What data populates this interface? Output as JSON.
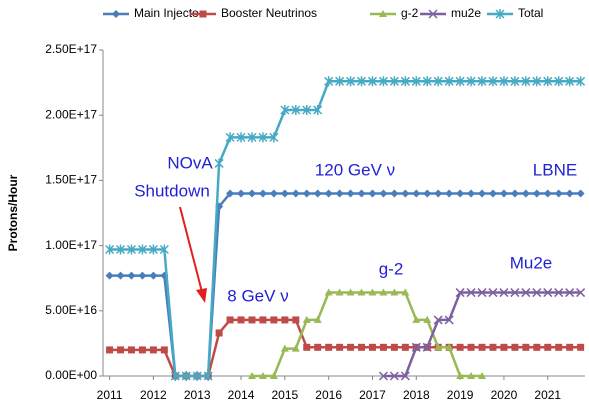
{
  "chart_data": {
    "type": "line",
    "ylabel": "Protons/Hour",
    "x": [
      2011,
      2011.25,
      2011.5,
      2011.75,
      2012,
      2012.25,
      2012.5,
      2012.75,
      2013,
      2013.25,
      2013.5,
      2013.75,
      2014,
      2014.25,
      2014.5,
      2014.75,
      2015,
      2015.25,
      2015.5,
      2015.75,
      2016,
      2016.25,
      2016.5,
      2016.75,
      2017,
      2017.25,
      2017.5,
      2017.75,
      2018,
      2018.25,
      2018.5,
      2018.75,
      2019,
      2019.25,
      2019.5,
      2019.75,
      2020,
      2020.25,
      2020.5,
      2020.75,
      2021,
      2021.25,
      2021.5,
      2021.75
    ],
    "series": [
      {
        "name": "Main Injector",
        "color": "#4a7ebb",
        "marker": "diamond",
        "values": [
          7.7e+16,
          7.7e+16,
          7.7e+16,
          7.7e+16,
          7.7e+16,
          7.7e+16,
          0,
          0,
          0,
          0,
          1.3e+17,
          1.4e+17,
          1.4e+17,
          1.4e+17,
          1.4e+17,
          1.4e+17,
          1.4e+17,
          1.4e+17,
          1.4e+17,
          1.4e+17,
          1.4e+17,
          1.4e+17,
          1.4e+17,
          1.4e+17,
          1.4e+17,
          1.4e+17,
          1.4e+17,
          1.4e+17,
          1.4e+17,
          1.4e+17,
          1.4e+17,
          1.4e+17,
          1.4e+17,
          1.4e+17,
          1.4e+17,
          1.4e+17,
          1.4e+17,
          1.4e+17,
          1.4e+17,
          1.4e+17,
          1.4e+17,
          1.4e+17,
          1.4e+17,
          1.4e+17
        ]
      },
      {
        "name": "Booster Neutrinos",
        "color": "#be4b48",
        "marker": "square",
        "values": [
          2e+16,
          2e+16,
          2e+16,
          2e+16,
          2e+16,
          2e+16,
          0,
          0,
          0,
          0,
          3.3e+16,
          4.3e+16,
          4.3e+16,
          4.3e+16,
          4.3e+16,
          4.3e+16,
          4.3e+16,
          4.3e+16,
          2.2e+16,
          2.2e+16,
          2.2e+16,
          2.2e+16,
          2.2e+16,
          2.2e+16,
          2.2e+16,
          2.2e+16,
          2.2e+16,
          2.2e+16,
          2.2e+16,
          2.2e+16,
          2.2e+16,
          2.2e+16,
          2.2e+16,
          2.2e+16,
          2.2e+16,
          2.2e+16,
          2.2e+16,
          2.2e+16,
          2.2e+16,
          2.2e+16,
          2.2e+16,
          2.2e+16,
          2.2e+16,
          2.2e+16
        ]
      },
      {
        "name": "g-2",
        "color": "#98b954",
        "marker": "triangle",
        "values": [
          null,
          null,
          null,
          null,
          null,
          null,
          null,
          null,
          null,
          null,
          null,
          null,
          null,
          0,
          0,
          0,
          2.1e+16,
          2.1e+16,
          4.3e+16,
          4.3e+16,
          6.4e+16,
          6.4e+16,
          6.4e+16,
          6.4e+16,
          6.4e+16,
          6.4e+16,
          6.4e+16,
          6.4e+16,
          4.3e+16,
          4.3e+16,
          2.2e+16,
          2.2e+16,
          0,
          0,
          0,
          null,
          null,
          null,
          null,
          null,
          null,
          null,
          null,
          null
        ]
      },
      {
        "name": "mu2e",
        "color": "#7d60a0",
        "marker": "x",
        "values": [
          null,
          null,
          null,
          null,
          null,
          null,
          null,
          null,
          null,
          null,
          null,
          null,
          null,
          null,
          null,
          null,
          null,
          null,
          null,
          null,
          null,
          null,
          null,
          null,
          null,
          0,
          0,
          0,
          2.2e+16,
          2.2e+16,
          4.3e+16,
          4.3e+16,
          6.4e+16,
          6.4e+16,
          6.4e+16,
          6.4e+16,
          6.4e+16,
          6.4e+16,
          6.4e+16,
          6.4e+16,
          6.4e+16,
          6.4e+16,
          6.4e+16,
          6.4e+16
        ]
      },
      {
        "name": "Total",
        "color": "#46aac5",
        "marker": "star",
        "values": [
          9.7e+16,
          9.7e+16,
          9.7e+16,
          9.7e+16,
          9.7e+16,
          9.7e+16,
          0,
          0,
          0,
          0,
          1.63e+17,
          1.83e+17,
          1.83e+17,
          1.83e+17,
          1.83e+17,
          1.83e+17,
          2.04e+17,
          2.04e+17,
          2.04e+17,
          2.04e+17,
          2.26e+17,
          2.26e+17,
          2.26e+17,
          2.26e+17,
          2.26e+17,
          2.26e+17,
          2.26e+17,
          2.26e+17,
          2.26e+17,
          2.26e+17,
          2.26e+17,
          2.26e+17,
          2.26e+17,
          2.26e+17,
          2.26e+17,
          2.26e+17,
          2.26e+17,
          2.26e+17,
          2.26e+17,
          2.26e+17,
          2.26e+17,
          2.26e+17,
          2.26e+17,
          2.26e+17
        ]
      }
    ],
    "xlim": [
      2010.85,
      2021.85
    ],
    "xticks": [
      2011,
      2012,
      2013,
      2014,
      2015,
      2016,
      2017,
      2018,
      2019,
      2020,
      2021
    ],
    "ylim": [
      0,
      2.5e+17
    ],
    "yticks": [
      {
        "value": 0,
        "label": "0.00E+00"
      },
      {
        "value": 5e+16,
        "label": "5.00E+16"
      },
      {
        "value": 1e+17,
        "label": "1.00E+17"
      },
      {
        "value": 1.5e+17,
        "label": "1.50E+17"
      },
      {
        "value": 2e+17,
        "label": "2.00E+17"
      },
      {
        "value": 2.5e+17,
        "label": "2.50E+17"
      }
    ],
    "grid": false,
    "legend": "top",
    "annotations": [
      "NOvA",
      "Shutdown",
      "120 GeV ν",
      "LBNE",
      "8 GeV ν",
      "g-2",
      "Mu2e"
    ]
  }
}
